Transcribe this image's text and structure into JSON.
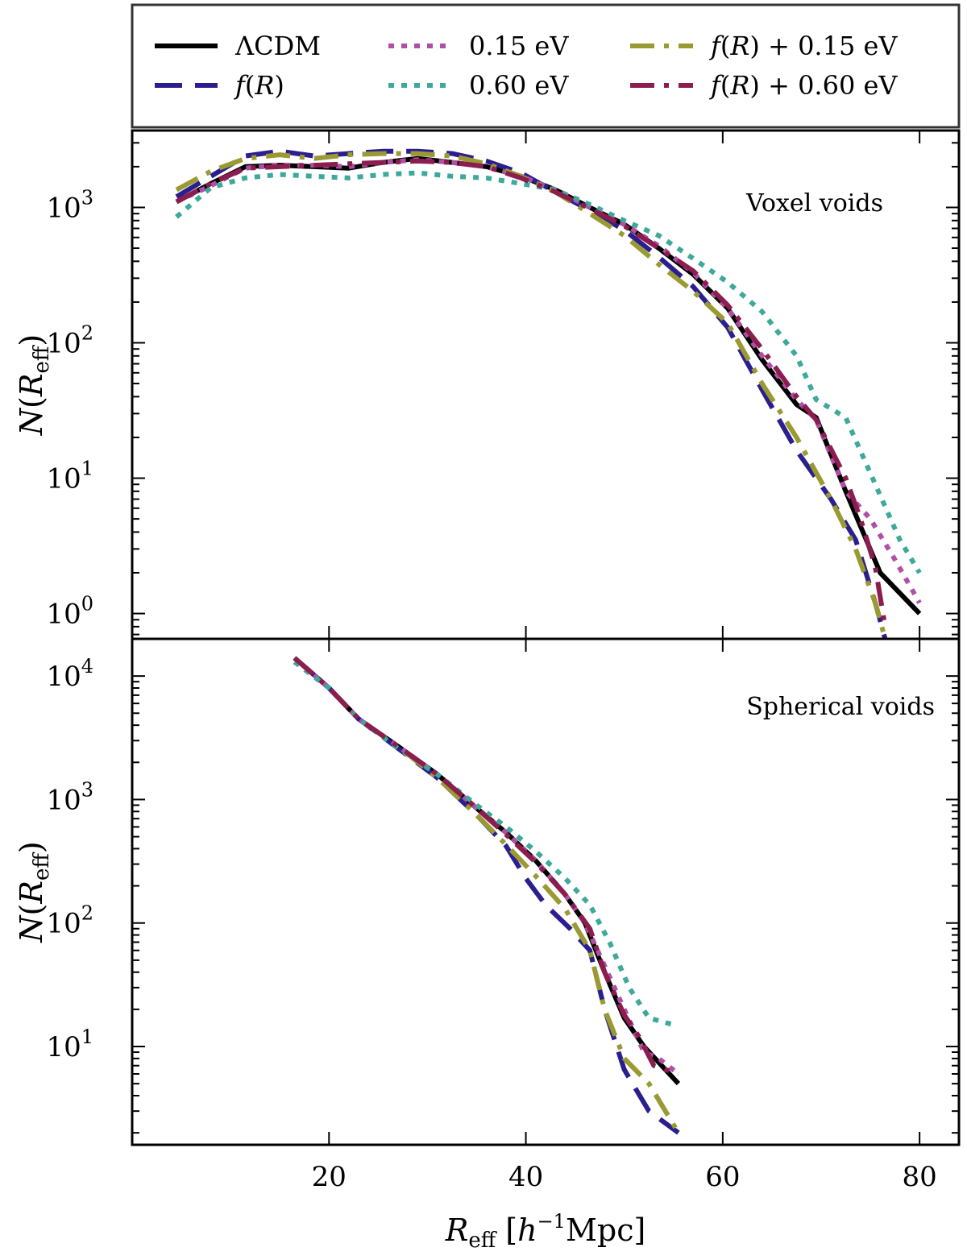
{
  "chart_data": {
    "type": "line",
    "x_scale": "linear",
    "y_scale": "log",
    "xlabel": "R_eff [h^-1 Mpc]",
    "xlim": [
      0,
      84
    ],
    "x_ticks": [
      20,
      40,
      60,
      80
    ],
    "x_tick_labels": [
      "20",
      "40",
      "60",
      "80"
    ],
    "legend": {
      "placement": "top, above panels",
      "entries": [
        {
          "label": "ΛCDM",
          "color": "#000000",
          "style": "solid"
        },
        {
          "label": "f(R)",
          "color": "#2b1f8f",
          "style": "dashed"
        },
        {
          "label": "0.15 eV",
          "color": "#b04fa5",
          "style": "dotted"
        },
        {
          "label": "0.60 eV",
          "color": "#3ca99b",
          "style": "dotted"
        },
        {
          "label": "f(R) + 0.15 eV",
          "color": "#9a9a32",
          "style": "dashdot"
        },
        {
          "label": "f(R) + 0.60 eV",
          "color": "#8c1d4f",
          "style": "dashdot"
        }
      ]
    },
    "panels": [
      {
        "name": "Voxel voids",
        "ylabel": "N(R_eff)",
        "ylim": [
          0.65,
          3700
        ],
        "y_ticks": [
          {
            "value": 1,
            "base": "10",
            "exp": "0"
          },
          {
            "value": 10,
            "base": "10",
            "exp": "1"
          },
          {
            "value": 100,
            "base": "10",
            "exp": "2"
          },
          {
            "value": 1000,
            "base": "10",
            "exp": "3"
          }
        ],
        "series": [
          {
            "name": "ΛCDM",
            "x": [
              4.5,
              8,
              11.5,
              15,
              18.5,
              22,
              25.5,
              29,
              32.5,
              36,
              39.5,
              43,
              46.5,
              50,
              53.5,
              57,
              60.5,
              64,
              67.5,
              69.5,
              72.5,
              76,
              80
            ],
            "y": [
              1100,
              1500,
              2000,
              2050,
              2000,
              1950,
              2150,
              2300,
              2150,
              2000,
              1700,
              1350,
              1000,
              750,
              500,
              320,
              180,
              75,
              35,
              28,
              8,
              2,
              1
            ]
          },
          {
            "name": "f(R)",
            "x": [
              4.5,
              8,
              11.5,
              15,
              18.5,
              22,
              25.5,
              29,
              32.5,
              36,
              39.5,
              43,
              46.5,
              50,
              53.5,
              57,
              60.5,
              64,
              67.5,
              71,
              73.5,
              75.5,
              76.5
            ],
            "y": [
              1200,
              1700,
              2400,
              2600,
              2400,
              2500,
              2600,
              2600,
              2500,
              2200,
              1800,
              1300,
              950,
              680,
              430,
              260,
              130,
              45,
              16,
              7,
              3.5,
              1.2,
              0.65
            ]
          },
          {
            "name": "0.15 eV",
            "x": [
              4.5,
              8,
              11.5,
              15,
              18.5,
              22,
              25.5,
              29,
              32.5,
              36,
              39.5,
              43,
              46.5,
              50,
              53.5,
              57,
              60.5,
              64,
              67.5,
              69.5,
              72.5,
              75,
              77.5,
              80
            ],
            "y": [
              1100,
              1450,
              1950,
              2050,
              2050,
              2000,
              2150,
              2250,
              2150,
              2000,
              1700,
              1350,
              1000,
              750,
              520,
              330,
              180,
              80,
              38,
              27,
              8,
              5,
              2.5,
              1.2
            ]
          },
          {
            "name": "0.60 eV",
            "x": [
              4.5,
              8,
              11.5,
              15,
              18.5,
              22,
              25.5,
              29,
              32.5,
              36,
              39.5,
              43,
              46.5,
              50,
              53.5,
              57,
              60.5,
              64,
              67.5,
              69.5,
              72.5,
              75.5,
              78,
              80
            ],
            "y": [
              850,
              1400,
              1650,
              1750,
              1700,
              1650,
              1750,
              1800,
              1700,
              1650,
              1500,
              1350,
              1050,
              800,
              620,
              420,
              280,
              170,
              80,
              38,
              28,
              9,
              3.5,
              2
            ]
          },
          {
            "name": "f(R) + 0.15 eV",
            "x": [
              4.5,
              8,
              11.5,
              15,
              18.5,
              22,
              25.5,
              29,
              32.5,
              36,
              39.5,
              43,
              46.5,
              50,
              53.5,
              57,
              60.5,
              64,
              67.5,
              71,
              73.5,
              75.5,
              76.5
            ],
            "y": [
              1350,
              1850,
              2300,
              2450,
              2300,
              2450,
              2500,
              2500,
              2400,
              2100,
              1700,
              1300,
              900,
              620,
              380,
              240,
              140,
              50,
              20,
              7,
              3,
              1.2,
              0.65
            ]
          },
          {
            "name": "f(R) + 0.60 eV",
            "x": [
              4.5,
              8,
              11.5,
              15,
              18.5,
              22,
              25.5,
              29,
              32.5,
              36,
              39.5,
              43,
              46.5,
              50,
              53.5,
              57,
              60.5,
              64,
              67.5,
              69.5,
              72.5,
              74,
              75.5,
              76.5
            ],
            "y": [
              1100,
              1500,
              1950,
              2000,
              2050,
              2100,
              2150,
              2200,
              2150,
              2000,
              1650,
              1300,
              980,
              730,
              500,
              340,
              190,
              90,
              40,
              27,
              10,
              5,
              2.2,
              0.8
            ]
          }
        ]
      },
      {
        "name": "Spherical voids",
        "ylabel": "N(R_eff)",
        "ylim": [
          1.6,
          20000
        ],
        "y_ticks": [
          {
            "value": 10,
            "base": "10",
            "exp": "1"
          },
          {
            "value": 100,
            "base": "10",
            "exp": "2"
          },
          {
            "value": 1000,
            "base": "10",
            "exp": "3"
          },
          {
            "value": 10000,
            "base": "10",
            "exp": "4"
          }
        ],
        "series": [
          {
            "name": "ΛCDM",
            "x": [
              16.5,
              20,
              23,
              27,
              31,
              35,
              38,
              41,
              44,
              46,
              48,
              50,
              52,
              55.5
            ],
            "y": [
              14000,
              8000,
              4500,
              2700,
              1600,
              850,
              540,
              320,
              170,
              100,
              40,
              17,
              10,
              5
            ]
          },
          {
            "name": "f(R)",
            "x": [
              16.5,
              20,
              23,
              27,
              31,
              35,
              38,
              40,
              42,
              44.5,
              46.5,
              48,
              50,
              52.5,
              55.5
            ],
            "y": [
              14000,
              8000,
              4500,
              2600,
              1500,
              750,
              420,
              230,
              140,
              90,
              60,
              20,
              6.5,
              3,
              2
            ]
          },
          {
            "name": "0.15 eV",
            "x": [
              16.5,
              20,
              23,
              27,
              31,
              35,
              38,
              41,
              44,
              46,
              48,
              50,
              52,
              53.5,
              55.5
            ],
            "y": [
              14000,
              8000,
              4500,
              2700,
              1600,
              850,
              540,
              320,
              170,
              100,
              45,
              20,
              9,
              8,
              6
            ]
          },
          {
            "name": "0.60 eV",
            "x": [
              16.5,
              20,
              23,
              27,
              31,
              35,
              38,
              41,
              44,
              46.5,
              48.5,
              50.5,
              52.5,
              55
            ],
            "y": [
              13000,
              8000,
              4500,
              2600,
              1600,
              900,
              600,
              380,
              230,
              140,
              70,
              30,
              17,
              15
            ]
          },
          {
            "name": "f(R) + 0.15 eV",
            "x": [
              16.5,
              20,
              23,
              27,
              31,
              35,
              38,
              41,
              44,
              46.5,
              48,
              50,
              52.5,
              55.5
            ],
            "y": [
              14000,
              8000,
              4500,
              2700,
              1500,
              750,
              430,
              240,
              130,
              60,
              20,
              8,
              5,
              2
            ]
          },
          {
            "name": "f(R) + 0.60 eV",
            "x": [
              16.5,
              20,
              23,
              27,
              31,
              35,
              38,
              41,
              44,
              46.5,
              48,
              50,
              51.5,
              53,
              55.5
            ],
            "y": [
              14000,
              8000,
              4500,
              2700,
              1600,
              850,
              520,
              310,
              170,
              90,
              40,
              18,
              12,
              7,
              6
            ]
          }
        ]
      }
    ]
  }
}
